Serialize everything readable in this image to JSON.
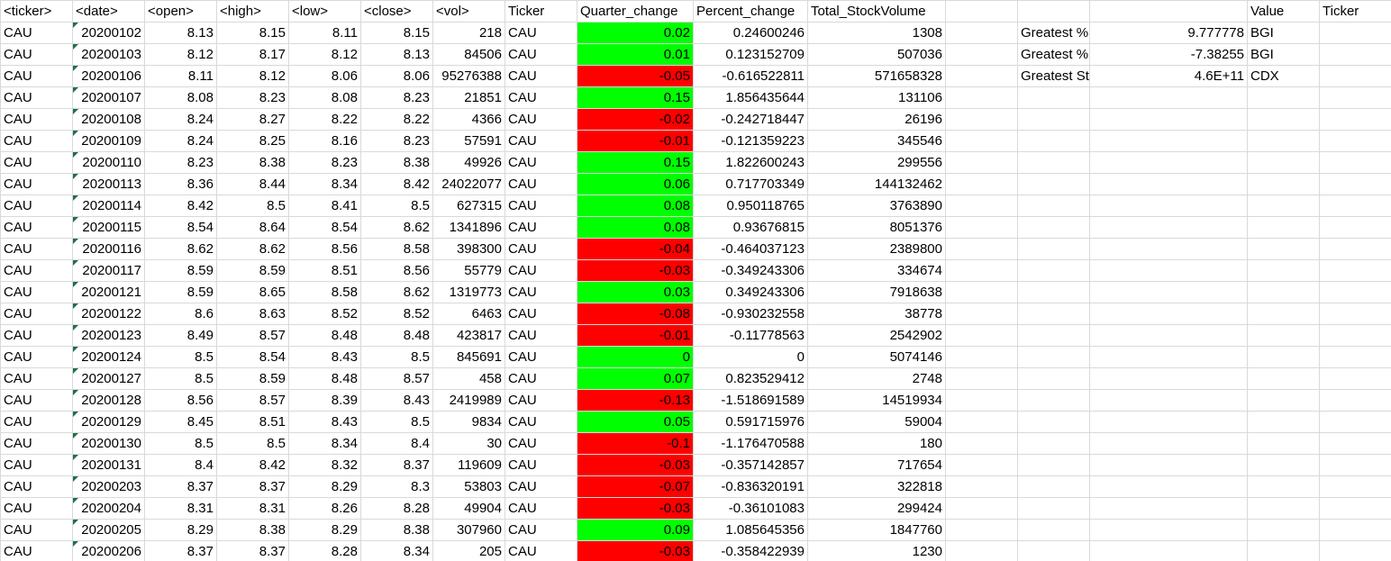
{
  "headers": [
    "<ticker>",
    "<date>",
    "<open>",
    "<high>",
    "<low>",
    "<close>",
    "<vol>",
    "Ticker",
    "Quarter_change",
    "Percent_change",
    "Total_StockVolume"
  ],
  "summary_headers": {
    "value": "Value",
    "ticker": "Ticker"
  },
  "summary": [
    {
      "label": "Greatest %Increase",
      "value": "9.777778",
      "ticker": "BGI"
    },
    {
      "label": "Greatest %Decrease",
      "value": "-7.38255",
      "ticker": "BGI"
    },
    {
      "label": "Greatest StockVolume",
      "value": "4.6E+11",
      "ticker": "CDX"
    }
  ],
  "colors": {
    "positive": "#00ff00",
    "negative": "#ff0000"
  },
  "rows": [
    [
      "CAU",
      "20200102",
      "8.13",
      "8.15",
      "8.11",
      "8.15",
      "218",
      "CAU",
      "0.02",
      "0.24600246",
      "1308"
    ],
    [
      "CAU",
      "20200103",
      "8.12",
      "8.17",
      "8.12",
      "8.13",
      "84506",
      "CAU",
      "0.01",
      "0.123152709",
      "507036"
    ],
    [
      "CAU",
      "20200106",
      "8.11",
      "8.12",
      "8.06",
      "8.06",
      "95276388",
      "CAU",
      "-0.05",
      "-0.616522811",
      "571658328"
    ],
    [
      "CAU",
      "20200107",
      "8.08",
      "8.23",
      "8.08",
      "8.23",
      "21851",
      "CAU",
      "0.15",
      "1.856435644",
      "131106"
    ],
    [
      "CAU",
      "20200108",
      "8.24",
      "8.27",
      "8.22",
      "8.22",
      "4366",
      "CAU",
      "-0.02",
      "-0.242718447",
      "26196"
    ],
    [
      "CAU",
      "20200109",
      "8.24",
      "8.25",
      "8.16",
      "8.23",
      "57591",
      "CAU",
      "-0.01",
      "-0.121359223",
      "345546"
    ],
    [
      "CAU",
      "20200110",
      "8.23",
      "8.38",
      "8.23",
      "8.38",
      "49926",
      "CAU",
      "0.15",
      "1.822600243",
      "299556"
    ],
    [
      "CAU",
      "20200113",
      "8.36",
      "8.44",
      "8.34",
      "8.42",
      "24022077",
      "CAU",
      "0.06",
      "0.717703349",
      "144132462"
    ],
    [
      "CAU",
      "20200114",
      "8.42",
      "8.5",
      "8.41",
      "8.5",
      "627315",
      "CAU",
      "0.08",
      "0.950118765",
      "3763890"
    ],
    [
      "CAU",
      "20200115",
      "8.54",
      "8.64",
      "8.54",
      "8.62",
      "1341896",
      "CAU",
      "0.08",
      "0.93676815",
      "8051376"
    ],
    [
      "CAU",
      "20200116",
      "8.62",
      "8.62",
      "8.56",
      "8.58",
      "398300",
      "CAU",
      "-0.04",
      "-0.464037123",
      "2389800"
    ],
    [
      "CAU",
      "20200117",
      "8.59",
      "8.59",
      "8.51",
      "8.56",
      "55779",
      "CAU",
      "-0.03",
      "-0.349243306",
      "334674"
    ],
    [
      "CAU",
      "20200121",
      "8.59",
      "8.65",
      "8.58",
      "8.62",
      "1319773",
      "CAU",
      "0.03",
      "0.349243306",
      "7918638"
    ],
    [
      "CAU",
      "20200122",
      "8.6",
      "8.63",
      "8.52",
      "8.52",
      "6463",
      "CAU",
      "-0.08",
      "-0.930232558",
      "38778"
    ],
    [
      "CAU",
      "20200123",
      "8.49",
      "8.57",
      "8.48",
      "8.48",
      "423817",
      "CAU",
      "-0.01",
      "-0.11778563",
      "2542902"
    ],
    [
      "CAU",
      "20200124",
      "8.5",
      "8.54",
      "8.43",
      "8.5",
      "845691",
      "CAU",
      "0",
      "0",
      "5074146"
    ],
    [
      "CAU",
      "20200127",
      "8.5",
      "8.59",
      "8.48",
      "8.57",
      "458",
      "CAU",
      "0.07",
      "0.823529412",
      "2748"
    ],
    [
      "CAU",
      "20200128",
      "8.56",
      "8.57",
      "8.39",
      "8.43",
      "2419989",
      "CAU",
      "-0.13",
      "-1.518691589",
      "14519934"
    ],
    [
      "CAU",
      "20200129",
      "8.45",
      "8.51",
      "8.43",
      "8.5",
      "9834",
      "CAU",
      "0.05",
      "0.591715976",
      "59004"
    ],
    [
      "CAU",
      "20200130",
      "8.5",
      "8.5",
      "8.34",
      "8.4",
      "30",
      "CAU",
      "-0.1",
      "-1.176470588",
      "180"
    ],
    [
      "CAU",
      "20200131",
      "8.4",
      "8.42",
      "8.32",
      "8.37",
      "119609",
      "CAU",
      "-0.03",
      "-0.357142857",
      "717654"
    ],
    [
      "CAU",
      "20200203",
      "8.37",
      "8.37",
      "8.29",
      "8.3",
      "53803",
      "CAU",
      "-0.07",
      "-0.836320191",
      "322818"
    ],
    [
      "CAU",
      "20200204",
      "8.31",
      "8.31",
      "8.26",
      "8.28",
      "49904",
      "CAU",
      "-0.03",
      "-0.36101083",
      "299424"
    ],
    [
      "CAU",
      "20200205",
      "8.29",
      "8.38",
      "8.29",
      "8.38",
      "307960",
      "CAU",
      "0.09",
      "1.085645356",
      "1847760"
    ],
    [
      "CAU",
      "20200206",
      "8.37",
      "8.37",
      "8.28",
      "8.34",
      "205",
      "CAU",
      "-0.03",
      "-0.358422939",
      "1230"
    ]
  ]
}
